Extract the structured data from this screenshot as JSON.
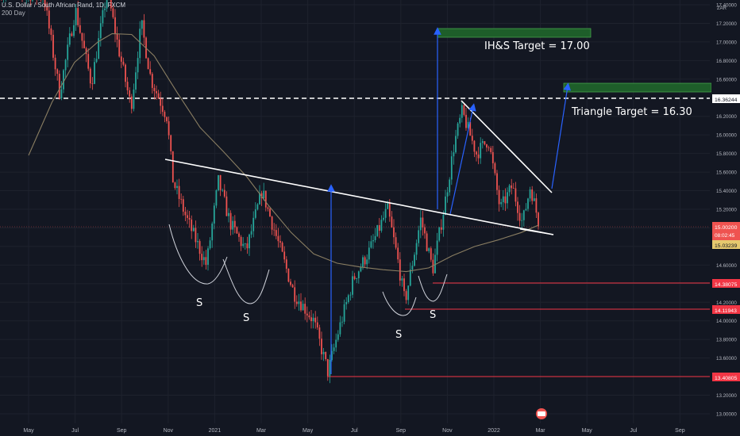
{
  "header": {
    "symbol": "U.S. Dollar / South African Rand, 1D, FXCM",
    "ma_label": "200 Day"
  },
  "price_axis": {
    "currency": "ZAR",
    "ticks": [
      "17.40000",
      "17.20000",
      "17.00000",
      "16.80000",
      "16.60000",
      "16.40000",
      "16.20000",
      "16.00000",
      "15.80000",
      "15.60000",
      "15.40000",
      "15.20000",
      "15.00000",
      "14.80000",
      "14.60000",
      "14.40000",
      "14.20000",
      "14.00000",
      "13.80000",
      "13.60000",
      "13.40000",
      "13.20000",
      "13.00000"
    ],
    "badges": {
      "dashed_level": "16.36244",
      "current_price": "15.00200",
      "countdown": "08:02:45",
      "ma_value": "15.03239",
      "level_1": "14.38075",
      "level_2": "14.11943",
      "level_3": "13.40805"
    }
  },
  "time_axis": {
    "labels": [
      "May",
      "Jul",
      "Sep",
      "Nov",
      "2021",
      "Mar",
      "May",
      "Jul",
      "Sep",
      "Nov",
      "2022",
      "Mar",
      "May",
      "Jul",
      "Sep"
    ]
  },
  "annotations": {
    "ihs_target": "IH&S Target = 17.00",
    "triangle_target": "Triangle Target = 16.30",
    "shoulder_label": "S"
  },
  "colors": {
    "background": "#131722",
    "up": "#26a69a",
    "down": "#ef5350",
    "ma": "#8a7e62",
    "level": "#f23645",
    "arrow": "#2962ff",
    "target_box": "#1e5e2a"
  },
  "chart_data": {
    "type": "candlestick",
    "title": "U.S. Dollar / South African Rand, 1D, FXCM",
    "ylabel": "ZAR",
    "ylim": [
      12.9,
      17.45
    ],
    "series": [
      {
        "name": "200 Day",
        "values": [
          [
            "2020-05-01",
            15.78
          ],
          [
            "2020-06-01",
            16.35
          ],
          [
            "2020-07-01",
            16.78
          ],
          [
            "2020-08-01",
            17.0
          ],
          [
            "2020-08-20",
            17.09
          ],
          [
            "2020-09-15",
            17.08
          ],
          [
            "2020-10-15",
            16.85
          ],
          [
            "2020-11-15",
            16.45
          ],
          [
            "2020-12-15",
            16.08
          ],
          [
            "2021-01-15",
            15.82
          ],
          [
            "2021-02-15",
            15.55
          ],
          [
            "2021-03-15",
            15.25
          ],
          [
            "2021-04-15",
            14.95
          ],
          [
            "2021-05-15",
            14.72
          ],
          [
            "2021-06-15",
            14.62
          ],
          [
            "2021-07-15",
            14.58
          ],
          [
            "2021-08-15",
            14.55
          ],
          [
            "2021-09-15",
            14.53
          ],
          [
            "2021-10-15",
            14.57
          ],
          [
            "2021-11-15",
            14.7
          ],
          [
            "2021-12-15",
            14.8
          ],
          [
            "2022-01-15",
            14.87
          ],
          [
            "2022-02-15",
            14.95
          ],
          [
            "2022-03-10",
            15.03
          ]
        ]
      }
    ],
    "levels": [
      16.36244,
      14.38075,
      14.11943,
      13.40805
    ],
    "current_price": 15.002
  }
}
